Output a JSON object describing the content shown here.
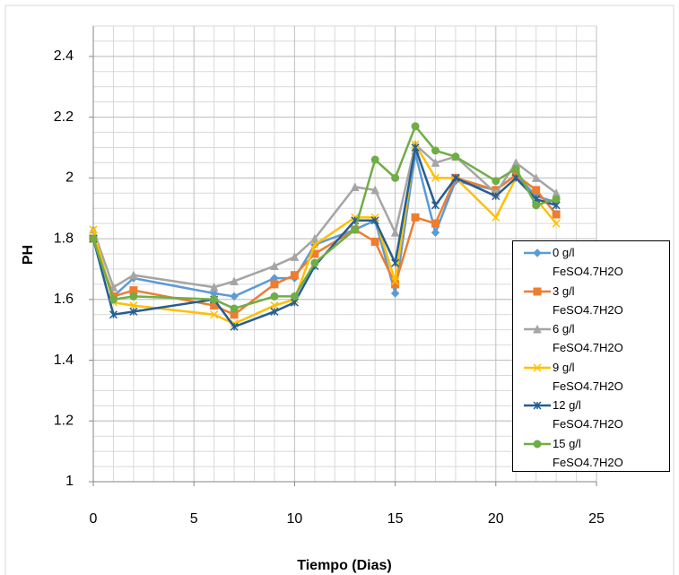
{
  "chart_data": {
    "type": "line",
    "x_label": "Tiempo (Dias)",
    "y_label": "PH",
    "x": [
      0,
      1,
      2,
      6,
      7,
      9,
      10,
      11,
      13,
      14,
      15,
      16,
      17,
      18,
      20,
      21,
      22,
      23
    ],
    "series": [
      {
        "name": "0 g/l FeSO4.7H2O",
        "color": "#5b9bd5",
        "marker": "diamond",
        "values": [
          1.8,
          1.61,
          1.67,
          1.62,
          1.61,
          1.67,
          1.67,
          1.78,
          1.83,
          1.86,
          1.62,
          2.08,
          1.82,
          1.99,
          1.96,
          2.01,
          1.94,
          1.92
        ]
      },
      {
        "name": "3 g/l FeSO4.7H2O",
        "color": "#ed7d31",
        "marker": "square",
        "values": [
          1.8,
          1.61,
          1.63,
          1.58,
          1.55,
          1.65,
          1.68,
          1.75,
          1.83,
          1.79,
          1.65,
          1.87,
          1.85,
          2.0,
          1.96,
          2.01,
          1.96,
          1.88
        ]
      },
      {
        "name": "6 g/l FeSO4.7H2O",
        "color": "#a5a5a5",
        "marker": "triangle",
        "values": [
          1.83,
          1.64,
          1.68,
          1.64,
          1.66,
          1.71,
          1.74,
          1.8,
          1.97,
          1.96,
          1.82,
          2.11,
          2.05,
          2.07,
          1.95,
          2.05,
          2.0,
          1.95
        ]
      },
      {
        "name": "9 g/l FeSO4.7H2O",
        "color": "#ffc000",
        "marker": "x",
        "values": [
          1.83,
          1.59,
          1.58,
          1.55,
          1.52,
          1.58,
          1.6,
          1.78,
          1.87,
          1.87,
          1.66,
          2.11,
          2.0,
          2.0,
          1.87,
          2.0,
          1.93,
          1.85
        ]
      },
      {
        "name": "12 g/l FeSO4.7H2O",
        "color": "#255e91",
        "marker": "star",
        "values": [
          1.8,
          1.55,
          1.56,
          1.6,
          1.51,
          1.56,
          1.59,
          1.71,
          1.86,
          1.86,
          1.72,
          2.1,
          1.91,
          2.0,
          1.94,
          2.0,
          1.93,
          1.91
        ]
      },
      {
        "name": "15 g/l FeSO4.7H2O",
        "color": "#70ad47",
        "marker": "circle",
        "values": [
          1.8,
          1.6,
          1.61,
          1.6,
          1.57,
          1.61,
          1.61,
          1.72,
          1.83,
          2.06,
          2.0,
          2.17,
          2.09,
          2.07,
          1.99,
          2.03,
          1.91,
          1.93
        ]
      }
    ],
    "xlim": [
      0,
      25
    ],
    "xticks": [
      0,
      5,
      10,
      15,
      20,
      25
    ],
    "ylim": [
      1,
      2.5
    ],
    "yticks": [
      1,
      1.2,
      1.4,
      1.6,
      1.8,
      2,
      2.2,
      2.4
    ],
    "grid": true,
    "minor_grid": true,
    "legend": "right"
  }
}
